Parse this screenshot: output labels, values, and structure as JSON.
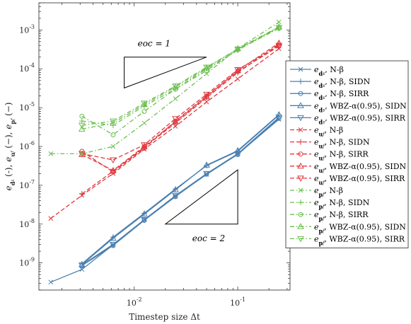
{
  "chart_data": {
    "type": "line",
    "xscale": "log",
    "yscale": "log",
    "xlim": [
      0.0012,
      0.32
    ],
    "ylim": [
      2e-10,
      0.005
    ],
    "xlabel": "Timestep size Δt",
    "ylabel": "e_{d_s} (-), e_{u_f} (−), e_{p_f} (−)",
    "x_tick_labels": [
      {
        "value": 0.01,
        "base": "10",
        "exp": "-2"
      },
      {
        "value": 0.1,
        "base": "10",
        "exp": "-1"
      }
    ],
    "y_tick_labels": [
      {
        "value": 1e-09,
        "base": "10",
        "exp": "-9"
      },
      {
        "value": 1e-08,
        "base": "10",
        "exp": "-8"
      },
      {
        "value": 1e-07,
        "base": "10",
        "exp": "-7"
      },
      {
        "value": 1e-06,
        "base": "10",
        "exp": "-6"
      },
      {
        "value": 1e-05,
        "base": "10",
        "exp": "-5"
      },
      {
        "value": 0.0001,
        "base": "10",
        "exp": "-4"
      },
      {
        "value": 0.001,
        "base": "10",
        "exp": "-3"
      }
    ],
    "grid": false,
    "legend_position": "right",
    "annotations": [
      {
        "label": "eoc = 1",
        "order": 1
      },
      {
        "label": "eoc = 2",
        "order": 2
      }
    ],
    "colors": {
      "d": "#4a7fb0",
      "u": "#e0383e",
      "p": "#6bbf4e"
    },
    "series": [
      {
        "name": "e_{d_s}, N-β",
        "group": "d",
        "marker": "x",
        "dash": "solid",
        "x": [
          0.0015625,
          0.003125,
          0.00625,
          0.0125,
          0.025,
          0.05,
          0.1,
          0.25
        ],
        "y": [
          3.2e-10,
          6.8e-10,
          2.9e-09,
          1.3e-08,
          5.2e-08,
          1.9e-07,
          6.3e-07,
          5e-06
        ]
      },
      {
        "name": "e_{d_s}, N-β, SIDN",
        "group": "d",
        "marker": "+",
        "dash": "solid",
        "x": [
          0.003125,
          0.00625,
          0.0125,
          0.025,
          0.05,
          0.1,
          0.25
        ],
        "y": [
          9.5e-10,
          4.6e-09,
          1.9e-08,
          8e-08,
          3.2e-07,
          7.5e-07,
          6.4e-06
        ]
      },
      {
        "name": "e_{d_s}, N-β, SIRR",
        "group": "d",
        "marker": "o",
        "dash": "solid",
        "x": [
          0.003125,
          0.00625,
          0.0125,
          0.025,
          0.05,
          0.1,
          0.25
        ],
        "y": [
          8.5e-10,
          2.8e-09,
          1.25e-08,
          5.1e-08,
          1.95e-07,
          6.2e-07,
          5.3e-06
        ]
      },
      {
        "name": "e_{d_s}, WBZ-α(0.95), SIDN",
        "group": "d",
        "marker": "^",
        "dash": "solid",
        "x": [
          0.003125,
          0.00625,
          0.0125,
          0.025,
          0.05,
          0.1,
          0.25
        ],
        "y": [
          9e-10,
          4.3e-09,
          1.8e-08,
          7.6e-08,
          3.3e-07,
          7.8e-07,
          6.6e-06
        ]
      },
      {
        "name": "e_{d_s}, WBZ-α(0.95), SIRR",
        "group": "d",
        "marker": "v",
        "dash": "solid",
        "x": [
          0.003125,
          0.00625,
          0.0125,
          0.025,
          0.05,
          0.1,
          0.25
        ],
        "y": [
          8.8e-10,
          3e-09,
          1.3e-08,
          5.4e-08,
          2e-07,
          6.5e-07,
          5.6e-06
        ]
      },
      {
        "name": "e_{u_f}, N-β",
        "group": "u",
        "marker": "x",
        "dash": "dashed",
        "x": [
          0.0015625,
          0.003125,
          0.00625,
          0.0125,
          0.025,
          0.05,
          0.1,
          0.25
        ],
        "y": [
          1.4e-08,
          5.5e-08,
          2e-07,
          8.5e-07,
          3.3e-06,
          1.4e-05,
          5.5e-05,
          0.00033
        ]
      },
      {
        "name": "e_{u_f}, N-β, SIDN",
        "group": "u",
        "marker": "+",
        "dash": "dashed",
        "x": [
          0.003125,
          0.00625,
          0.0125,
          0.025,
          0.05,
          0.1,
          0.25
        ],
        "y": [
          6e-08,
          2.3e-07,
          9.5e-07,
          4e-06,
          1.8e-05,
          8e-05,
          0.00043
        ]
      },
      {
        "name": "e_{u_f}, N-β, SIRR",
        "group": "u",
        "marker": "o",
        "dash": "dashed",
        "x": [
          0.003125,
          0.00625,
          0.0125,
          0.025,
          0.05,
          0.1,
          0.25
        ],
        "y": [
          7.5e-07,
          2.2e-07,
          9e-07,
          4.5e-06,
          2e-05,
          8.5e-05,
          0.00038
        ]
      },
      {
        "name": "e_{u_f}, WBZ-α(0.95), SIDN",
        "group": "u",
        "marker": "^",
        "dash": "dashed",
        "x": [
          0.003125,
          0.00625,
          0.0125,
          0.025,
          0.05,
          0.1,
          0.25
        ],
        "y": [
          6.2e-07,
          2.4e-07,
          1e-06,
          4.3e-06,
          1.9e-05,
          9e-05,
          0.00046
        ]
      },
      {
        "name": "e_{u_f}, WBZ-α(0.95), SIRR",
        "group": "u",
        "marker": "v",
        "dash": "dashed",
        "x": [
          0.003125,
          0.00625,
          0.0125,
          0.025,
          0.05,
          0.1,
          0.25
        ],
        "y": [
          6.5e-07,
          4.5e-07,
          1.1e-06,
          5.2e-06,
          2.2e-05,
          9.5e-05,
          0.0004
        ]
      },
      {
        "name": "e_{p_f}, N-β",
        "group": "p",
        "marker": "x",
        "dash": "dashdot",
        "x": [
          0.0015625,
          0.003125,
          0.00625,
          0.0125,
          0.025,
          0.05,
          0.1,
          0.25
        ],
        "y": [
          6.5e-07,
          6.5e-07,
          1e-06,
          4e-06,
          1.7e-05,
          7.5e-05,
          0.00033,
          0.0016
        ]
      },
      {
        "name": "e_{p_f}, N-β, SIDN",
        "group": "p",
        "marker": "+",
        "dash": "dashdot",
        "x": [
          0.003125,
          0.00625,
          0.0125,
          0.025,
          0.05,
          0.1,
          0.25
        ],
        "y": [
          4.5e-06,
          3.5e-06,
          1.1e-05,
          3e-05,
          0.0001,
          0.0003,
          0.0012
        ]
      },
      {
        "name": "e_{p_f}, N-β, SIRR",
        "group": "p",
        "marker": "o",
        "dash": "dashdot",
        "x": [
          0.003125,
          0.00625,
          0.0125,
          0.025,
          0.05,
          0.1,
          0.25
        ],
        "y": [
          6e-06,
          2e-06,
          8e-06,
          3e-05,
          9e-05,
          0.00031,
          0.0011
        ]
      },
      {
        "name": "e_{p_f}, WBZ-α(0.95), SIDN",
        "group": "p",
        "marker": "^",
        "dash": "dashdot",
        "x": [
          0.003125,
          0.00625,
          0.0125,
          0.025,
          0.05,
          0.1,
          0.25
        ],
        "y": [
          2.8e-06,
          4e-06,
          1.2e-05,
          3.4e-05,
          0.000105,
          0.00033,
          0.0012
        ]
      },
      {
        "name": "e_{p_f}, WBZ-α(0.95), SIRR",
        "group": "p",
        "marker": "v",
        "dash": "dashdot",
        "x": [
          0.003125,
          0.00625,
          0.0125,
          0.025,
          0.05,
          0.1,
          0.25
        ],
        "y": [
          3.5e-06,
          4.5e-06,
          1.3e-05,
          3.6e-05,
          0.00011,
          0.00032,
          0.00115
        ]
      }
    ]
  }
}
